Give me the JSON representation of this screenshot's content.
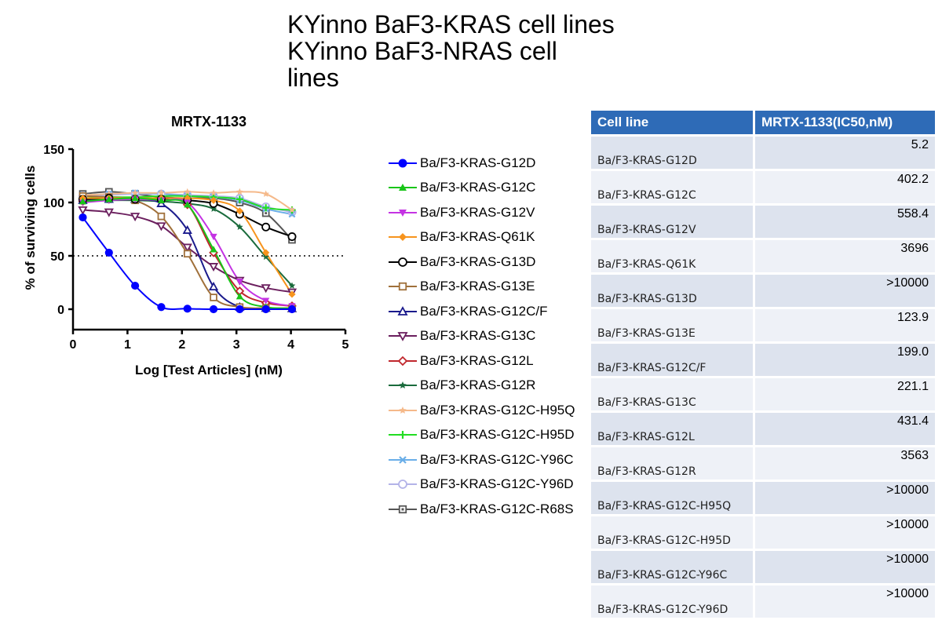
{
  "title_lines": [
    "KYinno BaF3-KRAS cell lines",
    "KYinno BaF3-NRAS cell",
    "lines"
  ],
  "chart_data": {
    "type": "line",
    "title": "MRTX-1133",
    "xlabel": "Log [Test Articles] (nM)",
    "ylabel": "% of surviving cells",
    "xlim": [
      0,
      5
    ],
    "ylim": [
      -15,
      150
    ],
    "xticks": [
      0,
      1,
      2,
      3,
      4,
      5
    ],
    "yticks": [
      0,
      50,
      100,
      150
    ],
    "reference_line": {
      "y": 50,
      "style": "dotted"
    },
    "x": [
      0.18,
      0.66,
      1.14,
      1.62,
      2.1,
      2.58,
      3.06,
      3.54,
      4.02
    ],
    "series": [
      {
        "name": "Ba/F3-KRAS-G12D",
        "color": "#0000ff",
        "marker": "circle-filled",
        "values": [
          86,
          53,
          22,
          2,
          0.5,
          0,
          0,
          0,
          0
        ]
      },
      {
        "name": "Ba/F3-KRAS-G12C",
        "color": "#19c519",
        "marker": "triangle-up-filled",
        "values": [
          101,
          103,
          104,
          102,
          98,
          56,
          12,
          2,
          1
        ]
      },
      {
        "name": "Ba/F3-KRAS-G12V",
        "color": "#c433e3",
        "marker": "triangle-down-filled",
        "values": [
          100,
          102,
          103,
          102,
          100,
          68,
          26,
          8,
          3
        ]
      },
      {
        "name": "Ba/F3-KRAS-Q61K",
        "color": "#f7941d",
        "marker": "diamond-filled",
        "values": [
          104,
          104,
          104,
          104,
          104,
          102,
          92,
          53,
          14
        ]
      },
      {
        "name": "Ba/F3-KRAS-G13D",
        "color": "#000000",
        "marker": "circle-open",
        "values": [
          103,
          104,
          103,
          103,
          102,
          99,
          89,
          77,
          68
        ]
      },
      {
        "name": "Ba/F3-KRAS-G13E",
        "color": "#a0703a",
        "marker": "square-open",
        "values": [
          106,
          105,
          102,
          87,
          52,
          11,
          2,
          1,
          1
        ]
      },
      {
        "name": "Ba/F3-KRAS-G12C/F",
        "color": "#1a1a8c",
        "marker": "triangle-up-open",
        "values": [
          102,
          103,
          103,
          99,
          74,
          21,
          2,
          1,
          0.5
        ]
      },
      {
        "name": "Ba/F3-KRAS-G13C",
        "color": "#6b1f5e",
        "marker": "triangle-down-open",
        "values": [
          93,
          91,
          87,
          78,
          58,
          40,
          27,
          20,
          16
        ]
      },
      {
        "name": "Ba/F3-KRAS-G12L",
        "color": "#c0272d",
        "marker": "diamond-open",
        "values": [
          101,
          103,
          103,
          102,
          98,
          53,
          17,
          6,
          3
        ]
      },
      {
        "name": "Ba/F3-KRAS-G12R",
        "color": "#1a6b3c",
        "marker": "star",
        "values": [
          101,
          102,
          102,
          101,
          99,
          94,
          77,
          49,
          22
        ]
      },
      {
        "name": "Ba/F3-KRAS-G12C-H95Q",
        "color": "#f5b98a",
        "marker": "star",
        "values": [
          107,
          108,
          109,
          109,
          110,
          109,
          110,
          108,
          93
        ]
      },
      {
        "name": "Ba/F3-KRAS-G12C-H95D",
        "color": "#22dd22",
        "marker": "plus",
        "values": [
          104,
          105,
          105,
          106,
          106,
          105,
          103,
          95,
          93
        ]
      },
      {
        "name": "Ba/F3-KRAS-G12C-Y96C",
        "color": "#6aaee8",
        "marker": "cross",
        "values": [
          107,
          108,
          109,
          108,
          106,
          105,
          102,
          94,
          89
        ]
      },
      {
        "name": "Ba/F3-KRAS-G12C-Y96D",
        "color": "#b3b3e8",
        "marker": "circle-open",
        "values": [
          106,
          107,
          108,
          108,
          107,
          106,
          104,
          96,
          91
        ]
      },
      {
        "name": "Ba/F3-KRAS-G12C-R68S",
        "color": "#555555",
        "marker": "square-open-dot",
        "values": [
          108,
          110,
          108,
          105,
          104,
          104,
          100,
          90,
          65
        ]
      }
    ]
  },
  "table": {
    "headers": [
      "Cell line",
      "MRTX-1133(IC50,nM)"
    ],
    "rows": [
      [
        "Ba/F3-KRAS-G12D",
        "5.2"
      ],
      [
        "Ba/F3-KRAS-G12C",
        "402.2"
      ],
      [
        "Ba/F3-KRAS-G12V",
        "558.4"
      ],
      [
        "Ba/F3-KRAS-Q61K",
        "3696"
      ],
      [
        "Ba/F3-KRAS-G13D",
        ">10000"
      ],
      [
        "Ba/F3-KRAS-G13E",
        "123.9"
      ],
      [
        "Ba/F3-KRAS-G12C/F",
        "199.0"
      ],
      [
        "Ba/F3-KRAS-G13C",
        "221.1"
      ],
      [
        "Ba/F3-KRAS-G12L",
        "431.4"
      ],
      [
        "Ba/F3-KRAS-G12R",
        "3563"
      ],
      [
        "Ba/F3-KRAS-G12C-H95Q",
        ">10000"
      ],
      [
        "Ba/F3-KRAS-G12C-H95D",
        ">10000"
      ],
      [
        "Ba/F3-KRAS-G12C-Y96C",
        ">10000"
      ],
      [
        "Ba/F3-KRAS-G12C-Y96D",
        ">10000"
      ]
    ]
  }
}
